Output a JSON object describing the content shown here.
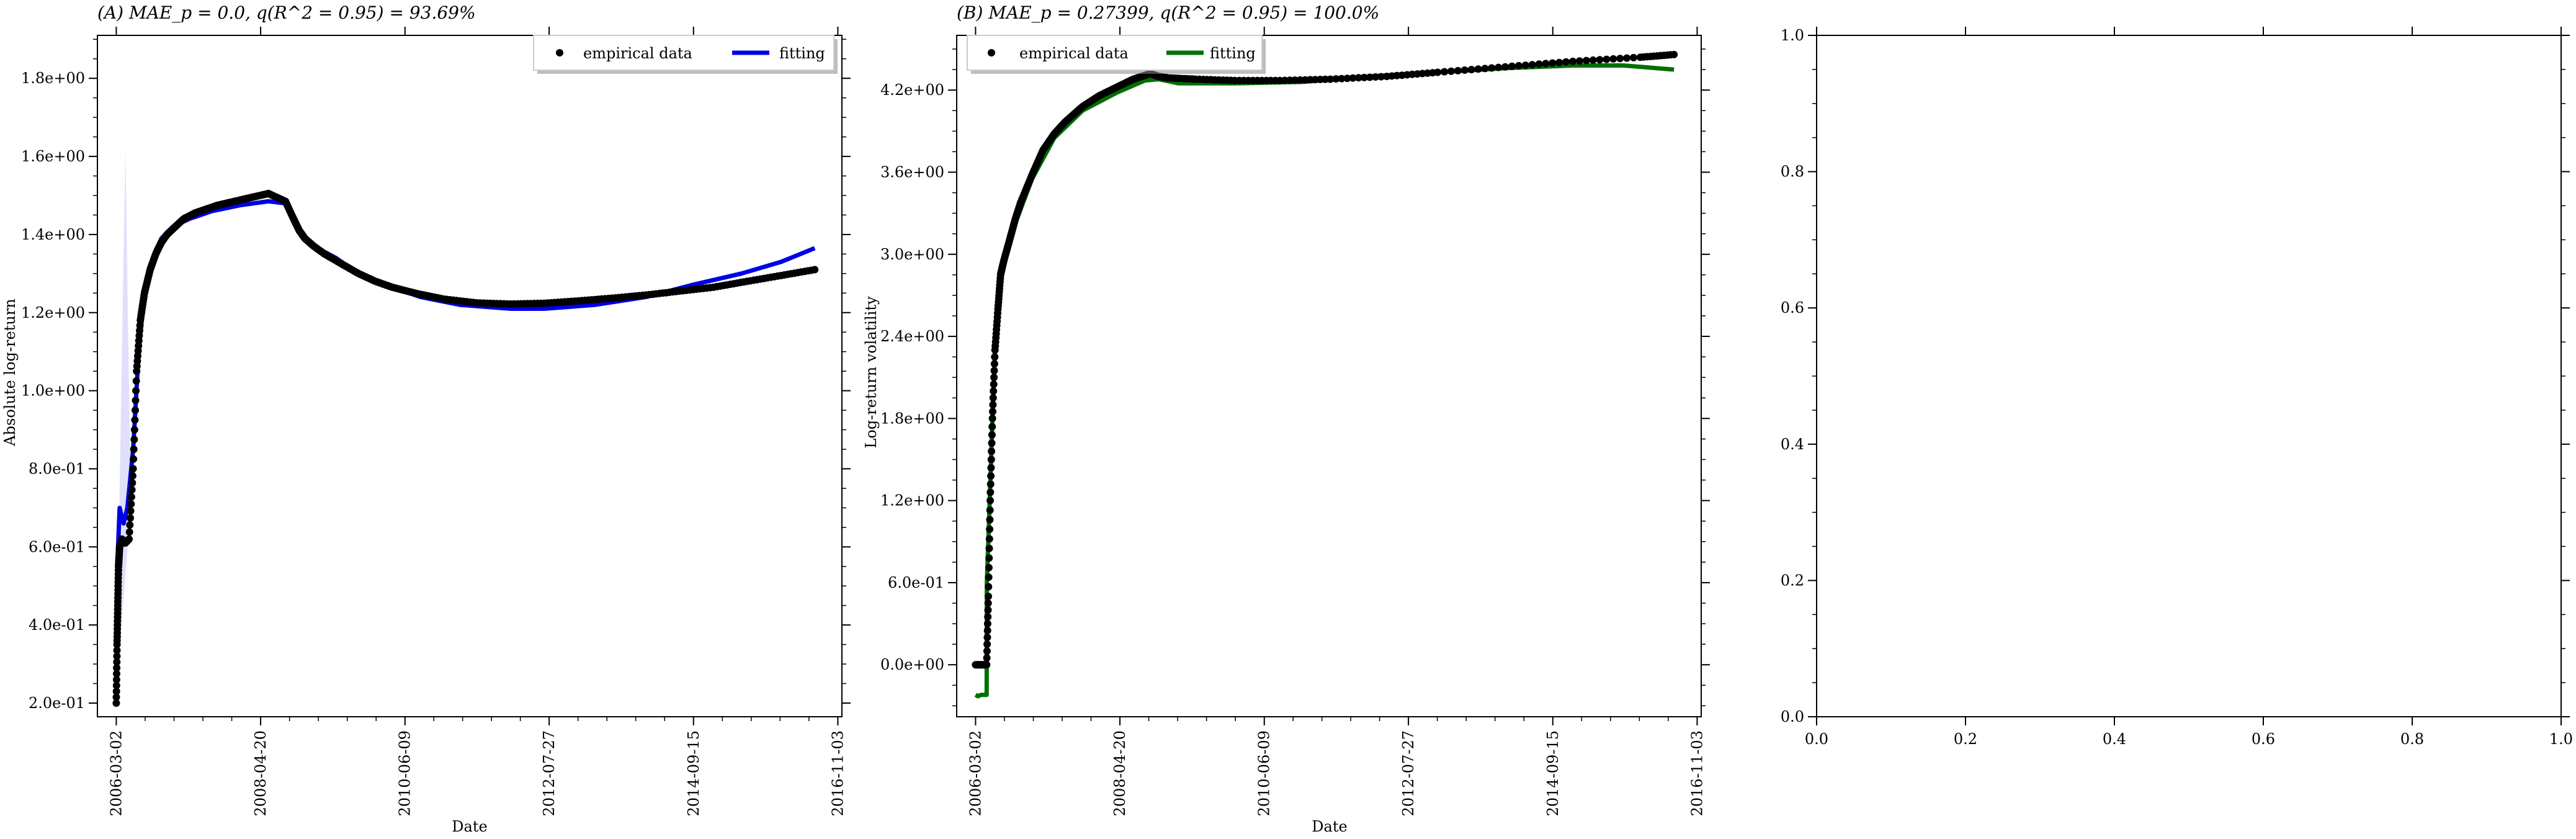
{
  "chart_data": [
    {
      "type": "line",
      "panel_label": "(A)",
      "title": "(A) MAE_p = 0.0, q(R^2 = 0.95) = 93.69%",
      "xlabel": "Date",
      "ylabel": "Absolute log-return",
      "xlim": [
        "2005-11-20",
        "2016-11-25"
      ],
      "ylim": [
        0.165,
        1.91
      ],
      "xticks": [
        "2006-03-02",
        "2008-04-20",
        "2010-06-09",
        "2012-07-27",
        "2014-09-15",
        "2016-11-03"
      ],
      "yticks": [
        0.2,
        0.4,
        0.6,
        0.8,
        1.0,
        1.2,
        1.4,
        1.6,
        1.8
      ],
      "ytick_labels": [
        "2.0e-01",
        "4.0e-01",
        "6.0e-01",
        "8.0e-01",
        "1.0e+00",
        "1.2e+00",
        "1.4e+00",
        "1.6e+00",
        "1.8e+00"
      ],
      "legend": {
        "placement": "top-right",
        "entries": [
          "empirical data",
          "fitting"
        ]
      },
      "grid": false,
      "series": [
        {
          "name": "empirical data",
          "style": "dots",
          "color": "#000000",
          "x": [
            "2006-03-02",
            "2006-03-06",
            "2006-03-10",
            "2006-03-14",
            "2006-03-20",
            "2006-04-01",
            "2006-04-20",
            "2006-05-10",
            "2006-06-01",
            "2006-06-20",
            "2006-07-10",
            "2006-08-01",
            "2006-09-01",
            "2006-10-01",
            "2006-11-01",
            "2006-12-01",
            "2007-01-15",
            "2007-03-01",
            "2007-05-01",
            "2007-07-01",
            "2007-09-01",
            "2007-12-01",
            "2008-03-01",
            "2008-06-01",
            "2008-09-01",
            "2008-10-15",
            "2008-11-15",
            "2008-12-15",
            "2009-02-01",
            "2009-04-01",
            "2009-07-01",
            "2009-10-01",
            "2010-01-01",
            "2010-04-01",
            "2010-08-01",
            "2011-01-01",
            "2011-07-01",
            "2012-01-01",
            "2012-07-01",
            "2013-01-01",
            "2013-07-01",
            "2014-01-01",
            "2014-07-01",
            "2015-01-01",
            "2015-07-01",
            "2016-01-01",
            "2016-07-01"
          ],
          "y": [
            0.2,
            0.35,
            0.45,
            0.55,
            0.6,
            0.62,
            0.61,
            0.62,
            0.8,
            1.05,
            1.18,
            1.25,
            1.31,
            1.35,
            1.38,
            1.4,
            1.42,
            1.44,
            1.455,
            1.465,
            1.475,
            1.485,
            1.495,
            1.505,
            1.485,
            1.44,
            1.41,
            1.39,
            1.37,
            1.35,
            1.325,
            1.3,
            1.28,
            1.265,
            1.25,
            1.235,
            1.225,
            1.222,
            1.224,
            1.23,
            1.237,
            1.245,
            1.255,
            1.265,
            1.28,
            1.295,
            1.31
          ]
        },
        {
          "name": "fitting",
          "style": "line",
          "color": "#0000e6",
          "x": [
            "2006-03-02",
            "2006-03-10",
            "2006-03-20",
            "2006-04-10",
            "2006-05-01",
            "2006-06-01",
            "2006-07-01",
            "2006-08-01",
            "2006-09-01",
            "2006-10-01",
            "2006-11-01",
            "2007-01-01",
            "2007-04-01",
            "2007-08-01",
            "2008-01-01",
            "2008-06-01",
            "2008-09-01",
            "2008-11-15",
            "2009-02-01",
            "2009-06-01",
            "2009-10-01",
            "2010-03-01",
            "2010-09-01",
            "2011-04-01",
            "2012-01-01",
            "2012-07-01",
            "2013-04-01",
            "2014-01-01",
            "2014-09-01",
            "2015-06-01",
            "2016-01-01",
            "2016-07-01"
          ],
          "y": [
            0.24,
            0.58,
            0.7,
            0.66,
            0.7,
            0.85,
            1.1,
            1.25,
            1.32,
            1.36,
            1.39,
            1.42,
            1.44,
            1.46,
            1.475,
            1.485,
            1.48,
            1.41,
            1.37,
            1.34,
            1.3,
            1.27,
            1.24,
            1.22,
            1.21,
            1.21,
            1.22,
            1.24,
            1.27,
            1.3,
            1.33,
            1.365
          ]
        }
      ]
    },
    {
      "type": "line",
      "panel_label": "(B)",
      "title": "(B) MAE_p = 0.27399, q(R^2 = 0.95) = 100.0%",
      "xlabel": "Date",
      "ylabel": "Log-return volatility",
      "xlim": [
        "2005-11-20",
        "2016-11-25"
      ],
      "ylim": [
        -0.38,
        4.6
      ],
      "xticks": [
        "2006-03-02",
        "2008-04-20",
        "2010-06-09",
        "2012-07-27",
        "2014-09-15",
        "2016-11-03"
      ],
      "yticks": [
        0.0,
        0.6,
        1.2,
        1.8,
        2.4,
        3.0,
        3.6,
        4.2
      ],
      "ytick_labels": [
        "0.0e+00",
        "6.0e-01",
        "1.2e+00",
        "1.8e+00",
        "2.4e+00",
        "3.0e+00",
        "3.6e+00",
        "4.2e+00"
      ],
      "legend": {
        "placement": "top-left",
        "entries": [
          "empirical data",
          "fitting"
        ]
      },
      "grid": false,
      "series": [
        {
          "name": "empirical data",
          "style": "dots",
          "color": "#000000",
          "x": [
            "2006-03-02",
            "2006-04-01",
            "2006-05-01",
            "2006-05-10",
            "2006-05-20",
            "2006-06-01",
            "2006-06-15",
            "2006-07-01",
            "2006-07-15",
            "2006-08-01",
            "2006-09-01",
            "2006-10-01",
            "2006-11-01",
            "2007-01-01",
            "2007-03-01",
            "2007-05-01",
            "2007-07-01",
            "2007-10-01",
            "2008-01-01",
            "2008-04-01",
            "2008-07-01",
            "2008-10-01",
            "2008-11-15",
            "2009-01-01",
            "2009-06-01",
            "2010-01-01",
            "2010-09-01",
            "2011-06-01",
            "2012-04-01",
            "2013-01-01",
            "2014-01-01",
            "2015-01-01",
            "2016-01-01",
            "2016-07-01"
          ],
          "y": [
            0.0,
            0.0,
            0.0,
            0.5,
            1.2,
            1.8,
            2.3,
            2.6,
            2.85,
            2.95,
            3.1,
            3.25,
            3.38,
            3.58,
            3.76,
            3.88,
            3.97,
            4.08,
            4.16,
            4.22,
            4.28,
            4.32,
            4.3,
            4.29,
            4.28,
            4.27,
            4.27,
            4.28,
            4.3,
            4.33,
            4.37,
            4.41,
            4.44,
            4.46
          ]
        },
        {
          "name": "fitting",
          "style": "line",
          "color": "#007000",
          "x": [
            "2006-03-02",
            "2006-03-15",
            "2006-04-01",
            "2006-05-01",
            "2006-05-02",
            "2006-05-20",
            "2006-06-01",
            "2006-06-15",
            "2006-07-01",
            "2006-08-01",
            "2006-10-01",
            "2007-01-01",
            "2007-05-01",
            "2007-10-01",
            "2008-04-01",
            "2008-09-01",
            "2008-11-15",
            "2009-03-01",
            "2010-01-01",
            "2011-01-01",
            "2012-01-01",
            "2013-01-01",
            "2014-01-01",
            "2015-01-01",
            "2015-10-01",
            "2016-07-01"
          ],
          "y": [
            -0.22,
            -0.23,
            -0.22,
            -0.22,
            0.6,
            1.3,
            1.8,
            2.3,
            2.6,
            2.95,
            3.22,
            3.55,
            3.85,
            4.05,
            4.18,
            4.27,
            4.28,
            4.25,
            4.25,
            4.26,
            4.3,
            4.33,
            4.36,
            4.38,
            4.38,
            4.35
          ]
        }
      ]
    },
    {
      "type": "empty",
      "panel_label": "",
      "xlim": [
        0.0,
        1.0
      ],
      "ylim": [
        0.0,
        1.0
      ],
      "xticks": [
        0.0,
        0.2,
        0.4,
        0.6,
        0.8,
        1.0
      ],
      "yticks": [
        0.0,
        0.2,
        0.4,
        0.6,
        0.8,
        1.0
      ],
      "xtick_labels": [
        "0.0",
        "0.2",
        "0.4",
        "0.6",
        "0.8",
        "1.0"
      ],
      "ytick_labels": [
        "0.0",
        "0.2",
        "0.4",
        "0.6",
        "0.8",
        "1.0"
      ]
    }
  ]
}
